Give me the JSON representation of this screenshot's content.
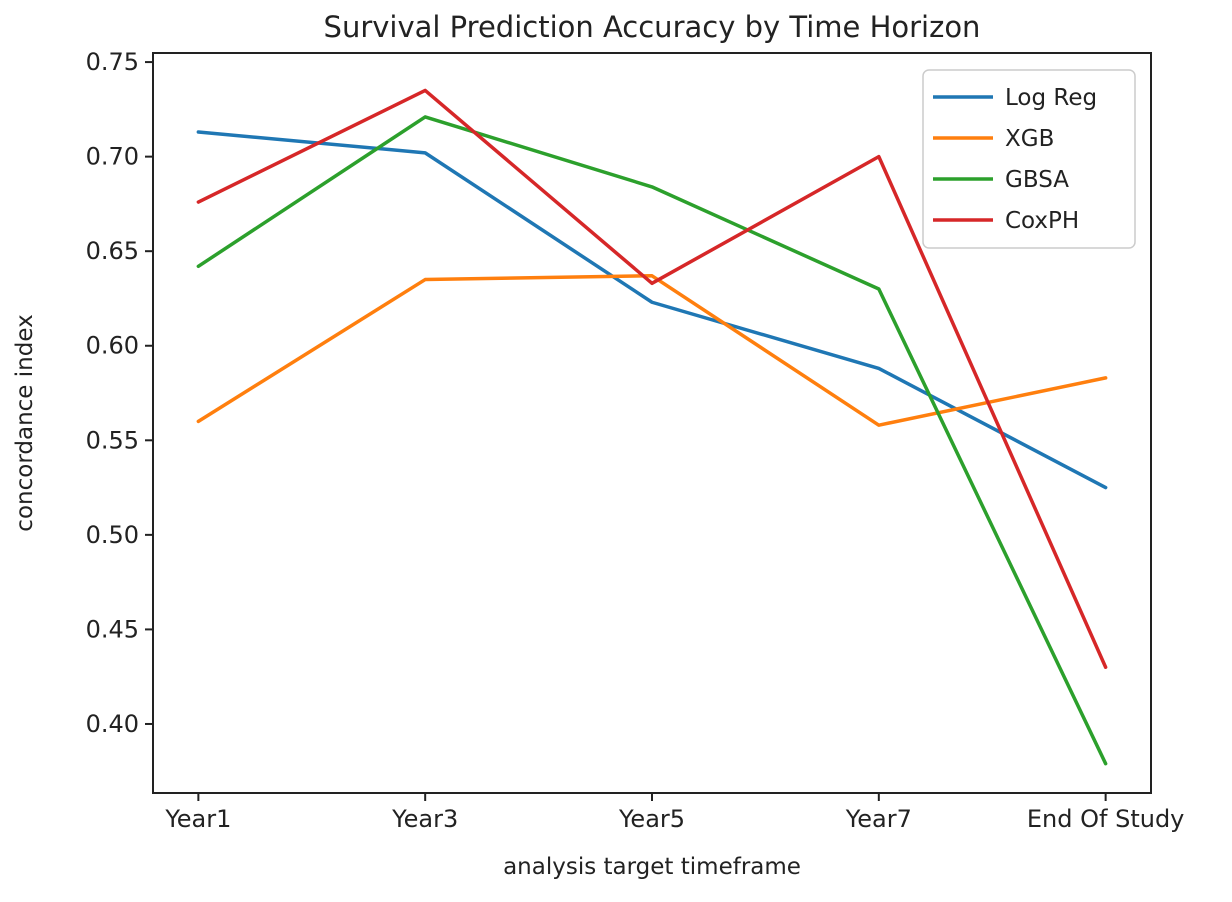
{
  "page": {
    "background": "#ffffff"
  },
  "chart_data": {
    "type": "line",
    "title": "Survival Prediction Accuracy by Time Horizon",
    "xlabel": "analysis target timeframe",
    "ylabel": "concordance index",
    "categories": [
      "Year1",
      "Year3",
      "Year5",
      "Year7",
      "End Of Study"
    ],
    "series": [
      {
        "name": "Log Reg",
        "color": "#1f77b4",
        "values": [
          0.713,
          0.702,
          0.623,
          0.588,
          0.525
        ]
      },
      {
        "name": "XGB",
        "color": "#ff7f0e",
        "values": [
          0.56,
          0.635,
          0.637,
          0.558,
          0.583
        ]
      },
      {
        "name": "GBSA",
        "color": "#2ca02c",
        "values": [
          0.642,
          0.721,
          0.684,
          0.63,
          0.379
        ]
      },
      {
        "name": "CoxPH",
        "color": "#d62728",
        "values": [
          0.676,
          0.735,
          0.633,
          0.7,
          0.43
        ]
      }
    ],
    "yticks": [
      0.4,
      0.45,
      0.5,
      0.55,
      0.6,
      0.65,
      0.7,
      0.75
    ],
    "ylim": [
      0.3635,
      0.7548
    ],
    "grid": false,
    "legend_position": "upper right",
    "axis_color": "#222222"
  }
}
